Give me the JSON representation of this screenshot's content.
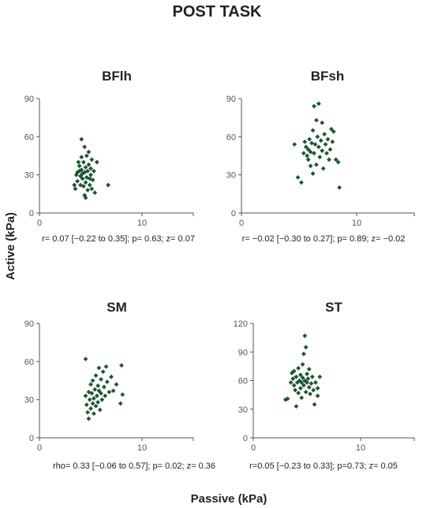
{
  "figure": {
    "title": "POST TASK",
    "ylabel": "Active (kPa)",
    "xlabel": "Passive (kPa)",
    "colors": {
      "marker": "#1e5631",
      "axis": "#555555",
      "text": "#222222"
    }
  },
  "chart_data": [
    {
      "type": "scatter",
      "title": "BFlh",
      "xlim": [
        0,
        15
      ],
      "ylim": [
        0,
        90
      ],
      "xticks": [
        "0",
        "10"
      ],
      "yticks": [
        "0",
        "30",
        "60",
        "90"
      ],
      "stat": "r= 0.07 [−0.22 to 0.35];  p= 0.63;  z= 0.07",
      "points": [
        [
          3.4,
          22
        ],
        [
          3.5,
          19
        ],
        [
          3.6,
          30
        ],
        [
          3.7,
          32
        ],
        [
          3.7,
          25
        ],
        [
          3.8,
          40
        ],
        [
          3.9,
          37
        ],
        [
          3.9,
          33
        ],
        [
          4.0,
          29
        ],
        [
          4.0,
          22
        ],
        [
          4.1,
          34
        ],
        [
          4.1,
          44
        ],
        [
          4.1,
          58
        ],
        [
          4.2,
          31
        ],
        [
          4.2,
          27
        ],
        [
          4.3,
          40
        ],
        [
          4.3,
          21
        ],
        [
          4.4,
          32
        ],
        [
          4.4,
          14
        ],
        [
          4.4,
          52
        ],
        [
          4.5,
          36
        ],
        [
          4.5,
          24
        ],
        [
          4.5,
          12
        ],
        [
          4.6,
          28
        ],
        [
          4.6,
          45
        ],
        [
          4.7,
          33
        ],
        [
          4.7,
          18
        ],
        [
          4.8,
          38
        ],
        [
          4.8,
          48
        ],
        [
          4.9,
          27
        ],
        [
          4.9,
          22
        ],
        [
          5.0,
          35
        ],
        [
          5.0,
          30
        ],
        [
          5.1,
          42
        ],
        [
          5.1,
          19
        ],
        [
          5.2,
          26
        ],
        [
          5.3,
          33
        ],
        [
          5.4,
          16
        ],
        [
          5.6,
          40
        ],
        [
          6.7,
          22
        ]
      ]
    },
    {
      "type": "scatter",
      "title": "BFsh",
      "xlim": [
        0,
        15
      ],
      "ylim": [
        0,
        90
      ],
      "xticks": [
        "0",
        "10"
      ],
      "yticks": [
        "0",
        "30",
        "60",
        "90"
      ],
      "stat": "r= −0.02 [−0.30 to 0.27];  p= 0.89;  z= −0.02",
      "points": [
        [
          4.6,
          54
        ],
        [
          4.9,
          28
        ],
        [
          5.2,
          24
        ],
        [
          5.4,
          47
        ],
        [
          5.5,
          56
        ],
        [
          5.6,
          52
        ],
        [
          5.7,
          45
        ],
        [
          5.8,
          50
        ],
        [
          5.8,
          42
        ],
        [
          5.9,
          58
        ],
        [
          6.0,
          37
        ],
        [
          6.0,
          48
        ],
        [
          6.1,
          55
        ],
        [
          6.2,
          65
        ],
        [
          6.2,
          31
        ],
        [
          6.3,
          84
        ],
        [
          6.3,
          47
        ],
        [
          6.4,
          54
        ],
        [
          6.5,
          73
        ],
        [
          6.5,
          38
        ],
        [
          6.6,
          60
        ],
        [
          6.7,
          86
        ],
        [
          6.7,
          52
        ],
        [
          6.8,
          44
        ],
        [
          6.9,
          57
        ],
        [
          7.0,
          71
        ],
        [
          7.0,
          49
        ],
        [
          7.1,
          35
        ],
        [
          7.2,
          62
        ],
        [
          7.3,
          54
        ],
        [
          7.4,
          47
        ],
        [
          7.5,
          58
        ],
        [
          7.6,
          42
        ],
        [
          7.7,
          50
        ],
        [
          7.8,
          66
        ],
        [
          7.9,
          56
        ],
        [
          8.0,
          64
        ],
        [
          8.2,
          42
        ],
        [
          8.4,
          40
        ],
        [
          8.5,
          20
        ]
      ]
    },
    {
      "type": "scatter",
      "title": "SM",
      "xlim": [
        0,
        15
      ],
      "ylim": [
        0,
        90
      ],
      "xticks": [
        "0",
        "10"
      ],
      "yticks": [
        "0",
        "30",
        "60",
        "90"
      ],
      "stat": "rho= 0.33 [−0.06 to 0.57];  p= 0.02;  z= 0.36",
      "points": [
        [
          4.5,
          62
        ],
        [
          4.5,
          33
        ],
        [
          4.6,
          26
        ],
        [
          4.7,
          20
        ],
        [
          4.8,
          15
        ],
        [
          4.8,
          36
        ],
        [
          4.9,
          30
        ],
        [
          5.0,
          23
        ],
        [
          5.0,
          42
        ],
        [
          5.1,
          35
        ],
        [
          5.2,
          27
        ],
        [
          5.2,
          45
        ],
        [
          5.3,
          31
        ],
        [
          5.3,
          19
        ],
        [
          5.4,
          38
        ],
        [
          5.5,
          25
        ],
        [
          5.5,
          49
        ],
        [
          5.6,
          33
        ],
        [
          5.7,
          41
        ],
        [
          5.7,
          28
        ],
        [
          5.8,
          55
        ],
        [
          5.8,
          37
        ],
        [
          5.9,
          22
        ],
        [
          6.0,
          35
        ],
        [
          6.0,
          46
        ],
        [
          6.1,
          30
        ],
        [
          6.2,
          52
        ],
        [
          6.3,
          40
        ],
        [
          6.4,
          33
        ],
        [
          6.5,
          56
        ],
        [
          6.6,
          44
        ],
        [
          6.8,
          36
        ],
        [
          7.0,
          48
        ],
        [
          7.2,
          37
        ],
        [
          7.5,
          42
        ],
        [
          7.9,
          27
        ],
        [
          8.0,
          57
        ],
        [
          8.1,
          34
        ]
      ]
    },
    {
      "type": "scatter",
      "title": "ST",
      "xlim": [
        0,
        15
      ],
      "ylim": [
        0,
        120
      ],
      "xticks": [
        "0",
        "10"
      ],
      "yticks": [
        "0",
        "30",
        "60",
        "90",
        "120"
      ],
      "stat": "r=0.05 [−0.23 to 0.33];    p=0.73;  z= 0.05",
      "points": [
        [
          3.0,
          40
        ],
        [
          3.2,
          41
        ],
        [
          3.5,
          58
        ],
        [
          3.6,
          68
        ],
        [
          3.7,
          62
        ],
        [
          3.8,
          55
        ],
        [
          3.8,
          70
        ],
        [
          3.9,
          50
        ],
        [
          4.0,
          33
        ],
        [
          4.0,
          64
        ],
        [
          4.1,
          58
        ],
        [
          4.2,
          73
        ],
        [
          4.2,
          47
        ],
        [
          4.3,
          60
        ],
        [
          4.4,
          66
        ],
        [
          4.4,
          52
        ],
        [
          4.5,
          58
        ],
        [
          4.5,
          42
        ],
        [
          4.6,
          63
        ],
        [
          4.6,
          77
        ],
        [
          4.7,
          55
        ],
        [
          4.7,
          88
        ],
        [
          4.8,
          107
        ],
        [
          4.8,
          60
        ],
        [
          4.9,
          95
        ],
        [
          4.9,
          48
        ],
        [
          5.0,
          58
        ],
        [
          5.0,
          67
        ],
        [
          5.1,
          62
        ],
        [
          5.2,
          53
        ],
        [
          5.2,
          72
        ],
        [
          5.3,
          46
        ],
        [
          5.4,
          57
        ],
        [
          5.5,
          64
        ],
        [
          5.6,
          50
        ],
        [
          5.7,
          35
        ],
        [
          5.8,
          58
        ],
        [
          6.0,
          44
        ],
        [
          6.0,
          52
        ],
        [
          6.2,
          64
        ]
      ]
    }
  ]
}
